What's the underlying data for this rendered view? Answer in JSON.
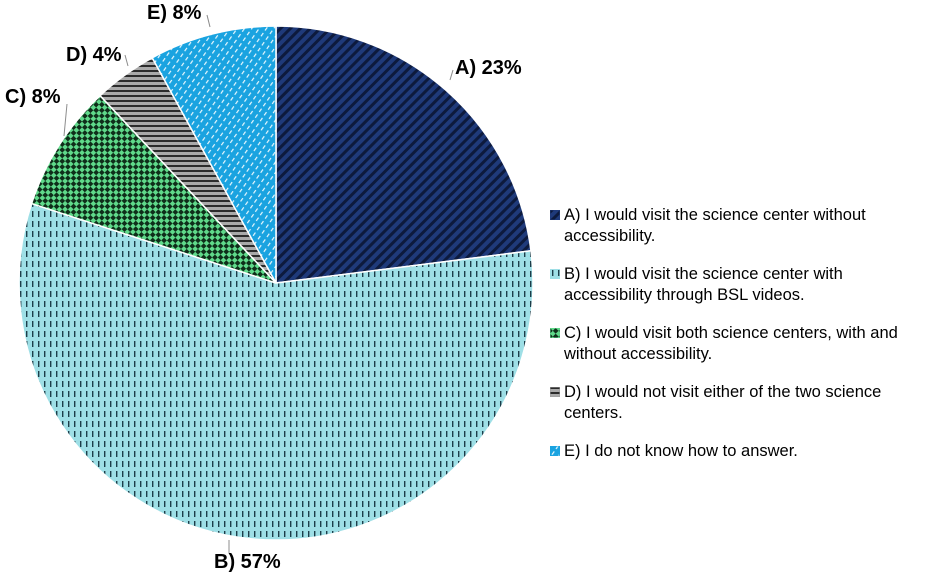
{
  "chart_data": {
    "type": "pie",
    "categories": [
      "A) I would visit the science center without accessibility.",
      "B) I would visit the science center with accessibility through BSL videos.",
      "C) I would visit both science centers, with and without accessibility.",
      "D) I would not visit either of the two science centers.",
      "E) I do not know how to answer."
    ],
    "values": [
      23,
      57,
      8,
      4,
      8
    ],
    "data_labels": [
      "A) 23%",
      "B) 57%",
      "C) 8%",
      "D) 4%",
      "E) 8%"
    ],
    "colors": [
      "#1f3a7a",
      "#9edfe6",
      "#5fd98a",
      "#9a9a9a",
      "#1aa3e0"
    ],
    "patterns": [
      "diagonal-stripes",
      "vertical-dashes",
      "checker",
      "horizontal-stripes",
      "diagonal-dashes"
    ],
    "legend_position": "right",
    "start_angle": "top, clockwise"
  },
  "legend": {
    "items": [
      {
        "lines": [
          "A) I would visit the science center without",
          "accessibility."
        ]
      },
      {
        "lines": [
          "B) I would visit the science center with",
          "accessibility through BSL videos."
        ]
      },
      {
        "lines": [
          "C) I would visit both science centers, with and",
          "without accessibility."
        ]
      },
      {
        "lines": [
          "D) I would not visit either of the two science",
          "centers."
        ]
      },
      {
        "lines": [
          "E) I do not know how to answer."
        ]
      }
    ]
  }
}
